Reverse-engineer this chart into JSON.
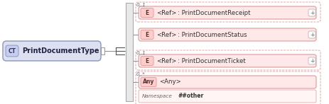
{
  "bg_color": "#ffffff",
  "ct_box": {
    "label": "PrintDocumentType",
    "prefix": "CT",
    "fill": "#dde0f0",
    "edge": "#8899bb",
    "prefix_fill": "#c8ccee",
    "text_color": "#000000",
    "font_size": 7.0
  },
  "sequence_bar": {
    "fill": "#e8e8e8",
    "edge": "#aaaaaa"
  },
  "rows": [
    {
      "label": ": PrintDocumentReceipt",
      "prefix": "E",
      "tag": "<Ref>",
      "min_occ": "0..1",
      "dashed_box": true,
      "plus": true,
      "fill": "#ffe8e8",
      "edge": "#dd9999"
    },
    {
      "label": ": PrintDocumentStatus",
      "prefix": "E",
      "tag": "<Ref>",
      "min_occ": "",
      "dashed_box": false,
      "plus": true,
      "fill": "#ffe8e8",
      "edge": "#dd9999"
    },
    {
      "label": ": PrintDocumentTicket",
      "prefix": "E",
      "tag": "<Ref>",
      "min_occ": "0..1",
      "dashed_box": true,
      "plus": true,
      "fill": "#ffe8e8",
      "edge": "#dd9999"
    },
    {
      "label": "<Any>",
      "prefix": "Any",
      "tag": "",
      "min_occ": "0..*",
      "dashed_box": true,
      "plus": false,
      "fill": "#ffe8e8",
      "edge": "#dd9999",
      "namespace": "##other"
    }
  ],
  "font_size": 6.2,
  "occ_font_size": 5.2,
  "tag_font_size": 6.2
}
